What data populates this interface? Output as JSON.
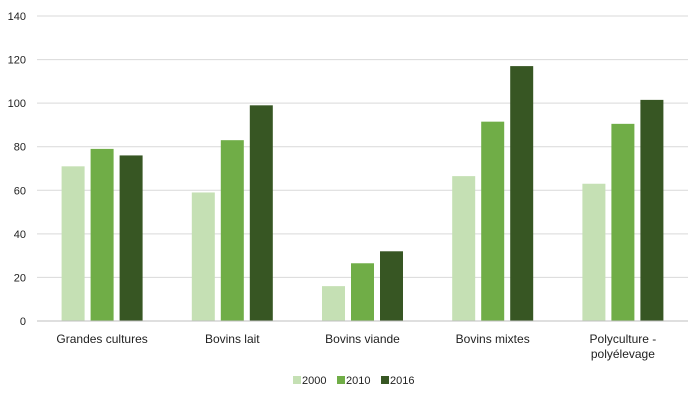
{
  "chart_data": {
    "type": "bar",
    "title": "",
    "xlabel": "",
    "ylabel": "",
    "ylim": [
      0,
      140
    ],
    "yticks": [
      0,
      20,
      40,
      60,
      80,
      100,
      120,
      140
    ],
    "grid": "horizontal",
    "legend_position": "bottom-center",
    "categories": [
      [
        "Grandes cultures"
      ],
      [
        "Bovins lait"
      ],
      [
        "Bovins viande"
      ],
      [
        "Bovins mixtes"
      ],
      [
        "Polyculture -",
        "polyélevage"
      ]
    ],
    "series": [
      {
        "name": "2000",
        "color": "#c5e0b4",
        "values": [
          71,
          59,
          16,
          66.5,
          63
        ]
      },
      {
        "name": "2010",
        "color": "#70ad47",
        "values": [
          79,
          83,
          26.5,
          91.5,
          90.5
        ]
      },
      {
        "name": "2016",
        "color": "#375623",
        "values": [
          76,
          99,
          32,
          117,
          101.5
        ]
      }
    ]
  }
}
